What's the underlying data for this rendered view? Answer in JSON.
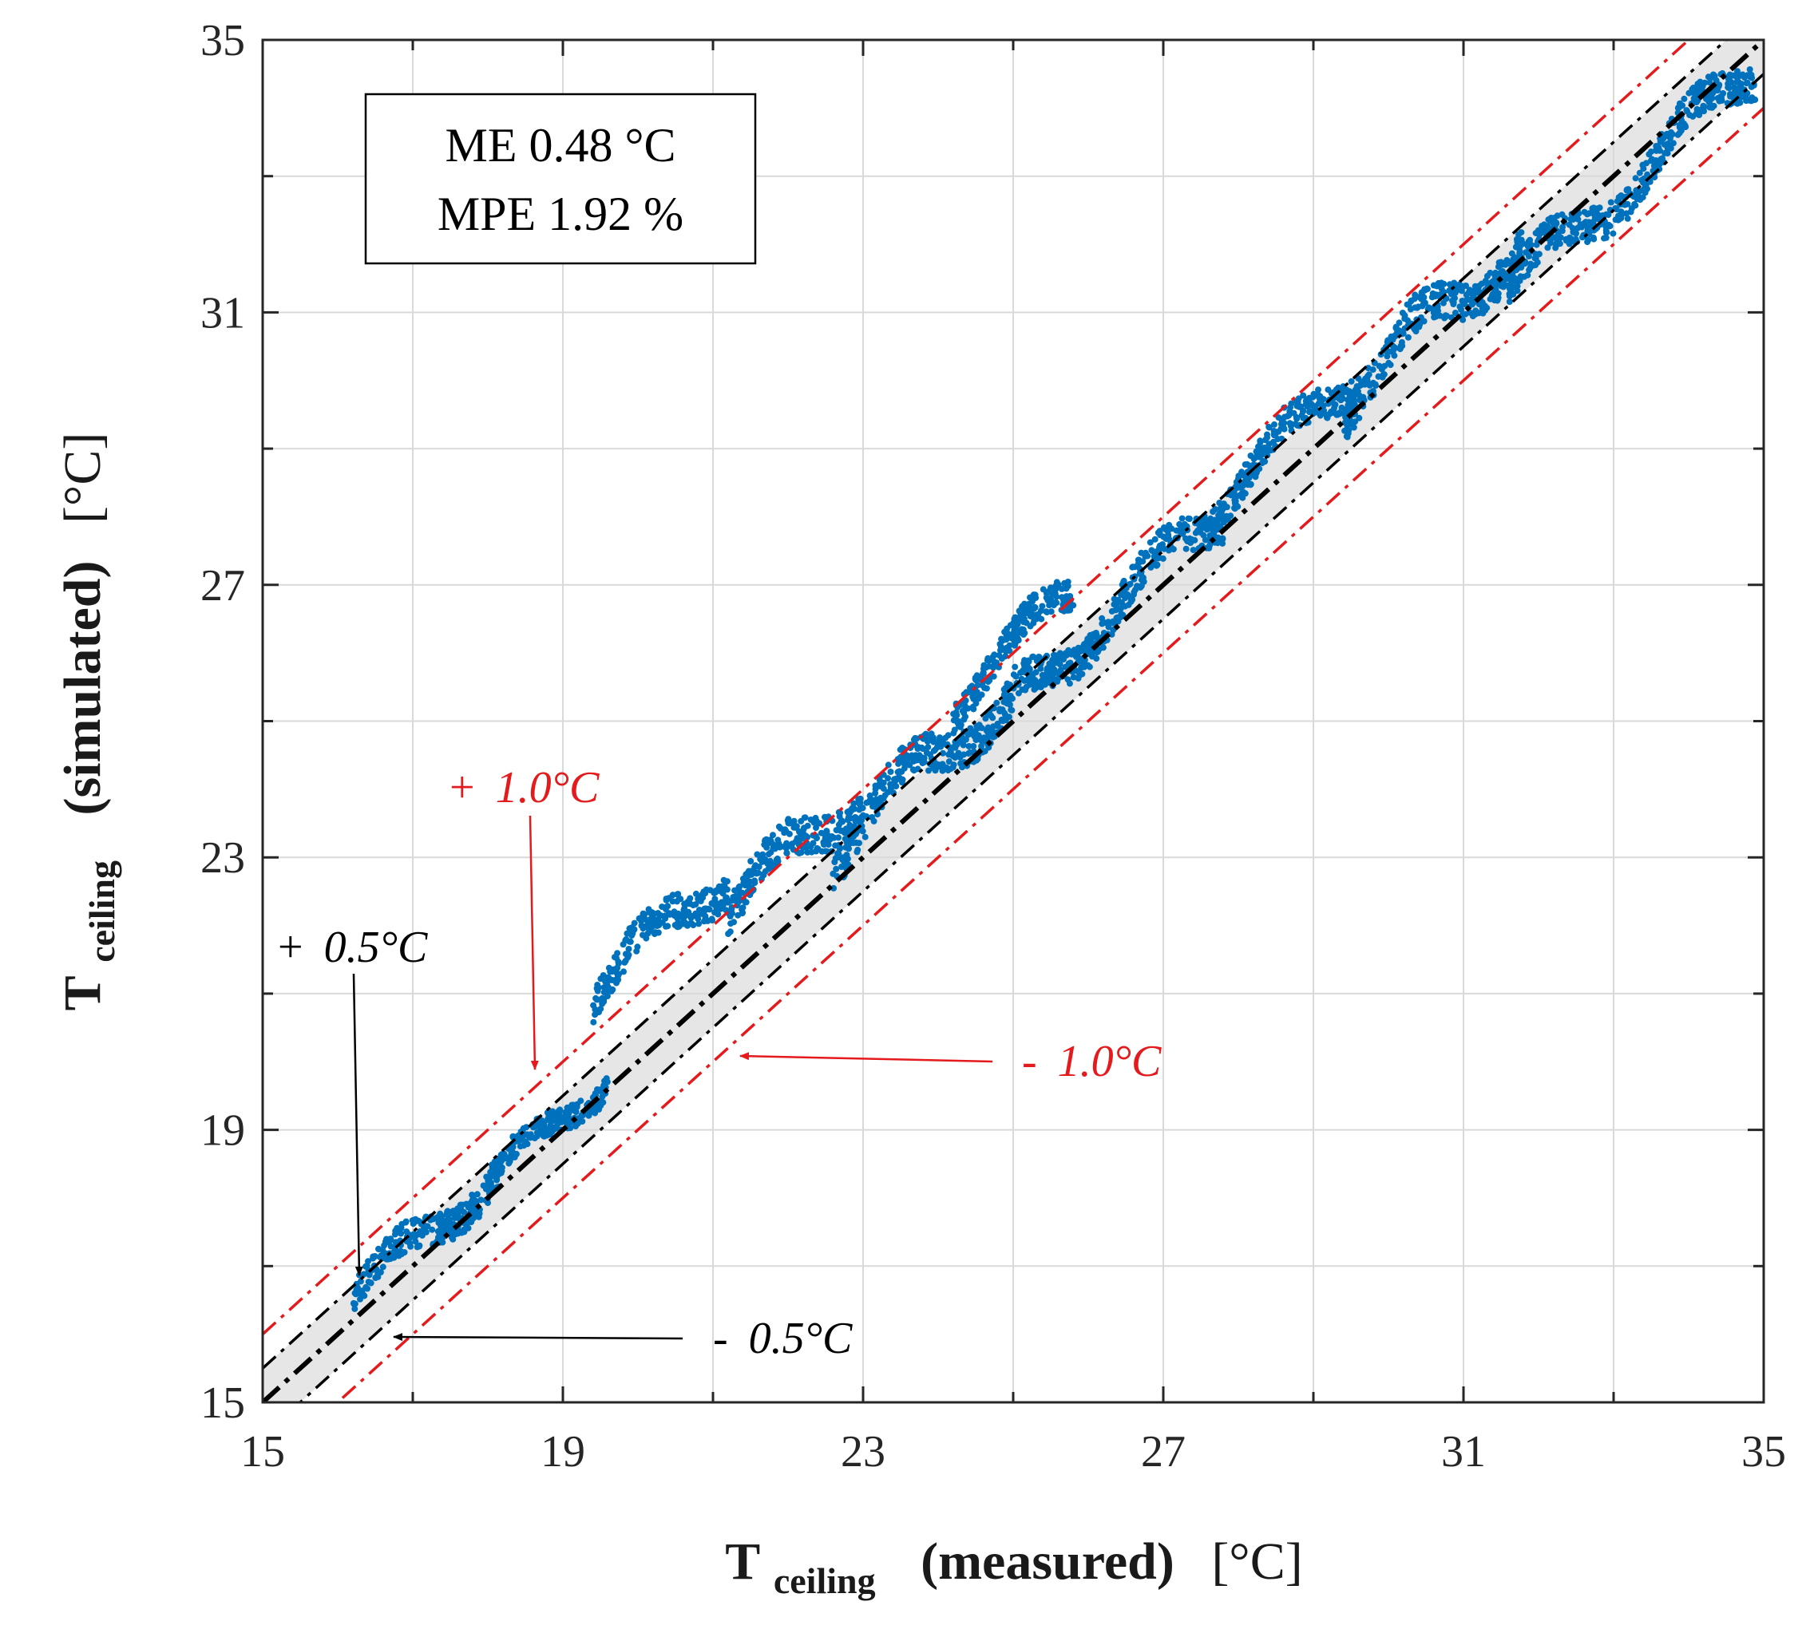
{
  "chart_data": {
    "type": "scatter",
    "xlabel": {
      "main": "T",
      "sub": "ceiling",
      "rest": "(measured)",
      "unit": "[°C]"
    },
    "ylabel": {
      "main": "T",
      "sub": "ceiling",
      "rest": "(simulated)",
      "unit": "[°C]"
    },
    "xlim": [
      15,
      35
    ],
    "ylim": [
      15,
      35
    ],
    "xticks": [
      15,
      19,
      23,
      27,
      31,
      35
    ],
    "yticks": [
      15,
      19,
      23,
      27,
      31,
      35
    ],
    "minor_step": 2,
    "grid": true,
    "stats_box": {
      "line1": "ME 0.48 °C",
      "line2": "MPE 1.92 %"
    },
    "reference_lines": [
      {
        "label": "+ 1.0°C",
        "offset": 1.0,
        "color": "#e41a1c",
        "style": "dash-dot"
      },
      {
        "label": "+ 0.5°C",
        "offset": 0.5,
        "color": "#000000",
        "style": "dash-dot"
      },
      {
        "label": "y = x",
        "offset": 0.0,
        "color": "#000000",
        "style": "dash-dot-bold"
      },
      {
        "label": "- 0.5°C",
        "offset": -0.5,
        "color": "#000000",
        "style": "dash-dot"
      },
      {
        "label": "- 1.0°C",
        "offset": -1.0,
        "color": "#e41a1c",
        "style": "dash-dot"
      }
    ],
    "band": {
      "lower": -0.5,
      "upper": 0.5,
      "color": "#e6e6e6"
    },
    "annotations": [
      {
        "text_sign": "+",
        "text_value": "1.0°C",
        "color": "#e41a1c",
        "arrow_to": [
          18.5,
          20.2
        ]
      },
      {
        "text_sign": "+",
        "text_value": "0.5°C",
        "color": "#000000",
        "arrow_to": [
          16.3,
          16.7
        ]
      },
      {
        "text_sign": "-",
        "text_value": "1.0°C",
        "color": "#e41a1c",
        "arrow_to": [
          21.2,
          20.1
        ]
      },
      {
        "text_sign": "-",
        "text_value": "0.5°C",
        "color": "#000000",
        "arrow_to": [
          16.7,
          16.1
        ]
      }
    ],
    "series": [
      {
        "color": "#0072bd",
        "clusters": [
          {
            "x": [
              16.2,
              18.2
            ],
            "offset": 0.3,
            "spread": 0.45
          },
          {
            "x": [
              18.0,
              19.6
            ],
            "offset": 0.2,
            "spread": 0.35
          },
          {
            "x": [
              19.4,
              21.2
            ],
            "offset": 1.6,
            "spread": 0.5
          },
          {
            "x": [
              21.2,
              23.0
            ],
            "offset": 1.0,
            "spread": 0.55
          },
          {
            "x": [
              22.6,
              25.0
            ],
            "offset": 0.5,
            "spread": 0.55
          },
          {
            "x": [
              24.2,
              25.8
            ],
            "offset": 1.1,
            "spread": 0.45
          },
          {
            "x": [
              25.0,
              27.8
            ],
            "offset": 0.3,
            "spread": 0.5
          },
          {
            "x": [
              27.6,
              29.6
            ],
            "offset": 0.5,
            "spread": 0.45
          },
          {
            "x": [
              29.4,
              31.8
            ],
            "offset": 0.3,
            "spread": 0.55
          },
          {
            "x": [
              31.6,
              34.9
            ],
            "offset": -0.3,
            "spread": 0.5
          }
        ]
      }
    ]
  }
}
